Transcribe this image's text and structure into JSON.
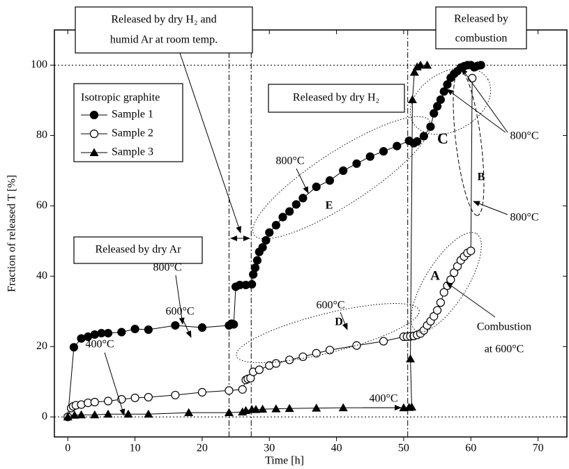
{
  "chart_data": {
    "type": "line",
    "xlabel": "Time [h]",
    "ylabel": "Fraction of released T [%]",
    "xlim": [
      -2,
      74.3
    ],
    "ylim": [
      -5.7,
      110
    ],
    "xticks": [
      0,
      10,
      20,
      30,
      40,
      50,
      60,
      70
    ],
    "yticks": [
      0,
      20,
      40,
      60,
      80,
      100
    ],
    "vlines": [
      24,
      27.3,
      50.6
    ],
    "hlines": [
      0,
      100
    ],
    "legend": "upper left",
    "legend_title": "Isotropic graphite",
    "series": [
      {
        "name": "Sample 1",
        "marker": "filled-circle",
        "color": "#000000",
        "x": [
          0,
          0.9,
          2,
          3,
          4,
          5,
          6,
          8,
          10,
          12,
          16,
          20,
          24,
          24.4,
          24.7,
          25,
          25.6,
          26.5,
          27.4,
          27.6,
          27.9,
          28.2,
          28.5,
          29,
          29.5,
          30,
          31,
          32,
          33,
          34,
          35,
          37,
          39,
          41,
          43,
          45,
          47,
          49,
          50.8,
          51.5,
          52,
          53,
          54,
          54.5,
          55,
          55.5,
          56,
          56.5,
          57,
          57.5,
          58,
          58.5,
          59,
          59.5,
          60,
          60.5,
          61,
          61.5
        ],
        "values": [
          0,
          19.8,
          22.3,
          22.8,
          23.4,
          23.8,
          23.8,
          24.1,
          25,
          24.8,
          26,
          25.4,
          26,
          26.5,
          26.3,
          37,
          37.5,
          37.5,
          37.7,
          40.5,
          42.4,
          44.5,
          46.9,
          48.2,
          50.2,
          52.4,
          54.5,
          56.8,
          58.4,
          60.4,
          62.2,
          65.4,
          67.2,
          70,
          72,
          74,
          75.5,
          77,
          78.5,
          77.8,
          78.3,
          79.8,
          82.5,
          86.3,
          88.3,
          90.2,
          92.5,
          94.5,
          96.4,
          97.5,
          98.3,
          99.3,
          99.7,
          100,
          100,
          99.4,
          99.8,
          100
        ]
      },
      {
        "name": "Sample 2",
        "marker": "open-circle",
        "color": "#000000",
        "x": [
          0,
          0.5,
          0.8,
          1.2,
          2,
          3,
          4,
          6,
          8,
          10,
          12,
          16,
          20,
          24,
          26,
          26.5,
          26.8,
          27.2,
          27.6,
          28.5,
          30,
          31,
          33,
          35,
          37,
          39,
          43,
          47,
          50,
          50.5,
          51,
          51.5,
          52,
          52.5,
          53,
          53.5,
          54,
          54.5,
          55,
          55.5,
          56,
          56.5,
          57,
          57.5,
          58,
          58.5,
          59,
          59.5,
          60,
          60.2
        ],
        "values": [
          0,
          2.5,
          3,
          3.3,
          3.5,
          4,
          4.2,
          4.5,
          5,
          5.4,
          5.6,
          6.2,
          7,
          7.5,
          7.8,
          10.5,
          10.8,
          11,
          12.8,
          13.4,
          14.6,
          15.2,
          16.2,
          17.1,
          18.1,
          19,
          20.3,
          21.5,
          22.8,
          22.8,
          22.9,
          23,
          23.3,
          23.7,
          24.6,
          26,
          27.2,
          28.6,
          30.3,
          32.5,
          35.4,
          37.3,
          39,
          41,
          42.8,
          44.5,
          45.6,
          46.6,
          47.2,
          96.3
        ]
      },
      {
        "name": "Sample 3",
        "marker": "triangle",
        "color": "#000000",
        "x": [
          0,
          1,
          2,
          4,
          6,
          9,
          12,
          18,
          24,
          26,
          26.5,
          27.4,
          28,
          29,
          31,
          33,
          37,
          41,
          50,
          50.8,
          51.2,
          51,
          51.3,
          51.6,
          52,
          52.5,
          53.5
        ],
        "values": [
          0,
          0.5,
          0.6,
          0.6,
          0.8,
          0.8,
          0.8,
          1.2,
          1.2,
          1.4,
          1.8,
          2.1,
          2.1,
          2.2,
          2.3,
          2.4,
          2.5,
          2.6,
          2.6,
          2.7,
          2.8,
          16.5,
          90.2,
          98,
          99.5,
          100,
          100
        ]
      }
    ],
    "annotations": [
      "Released by dry H₂ and",
      "humid Ar at room temp.",
      "Released by",
      "combustion",
      "Released by dry H₂",
      "Released by dry Ar",
      "800°C",
      "800°C",
      "800°C",
      "800°C",
      "600°C",
      "600°C",
      "400°C",
      "400°C",
      "Combustion",
      "at 600°C",
      "A",
      "B",
      "C",
      "D",
      "E"
    ]
  }
}
